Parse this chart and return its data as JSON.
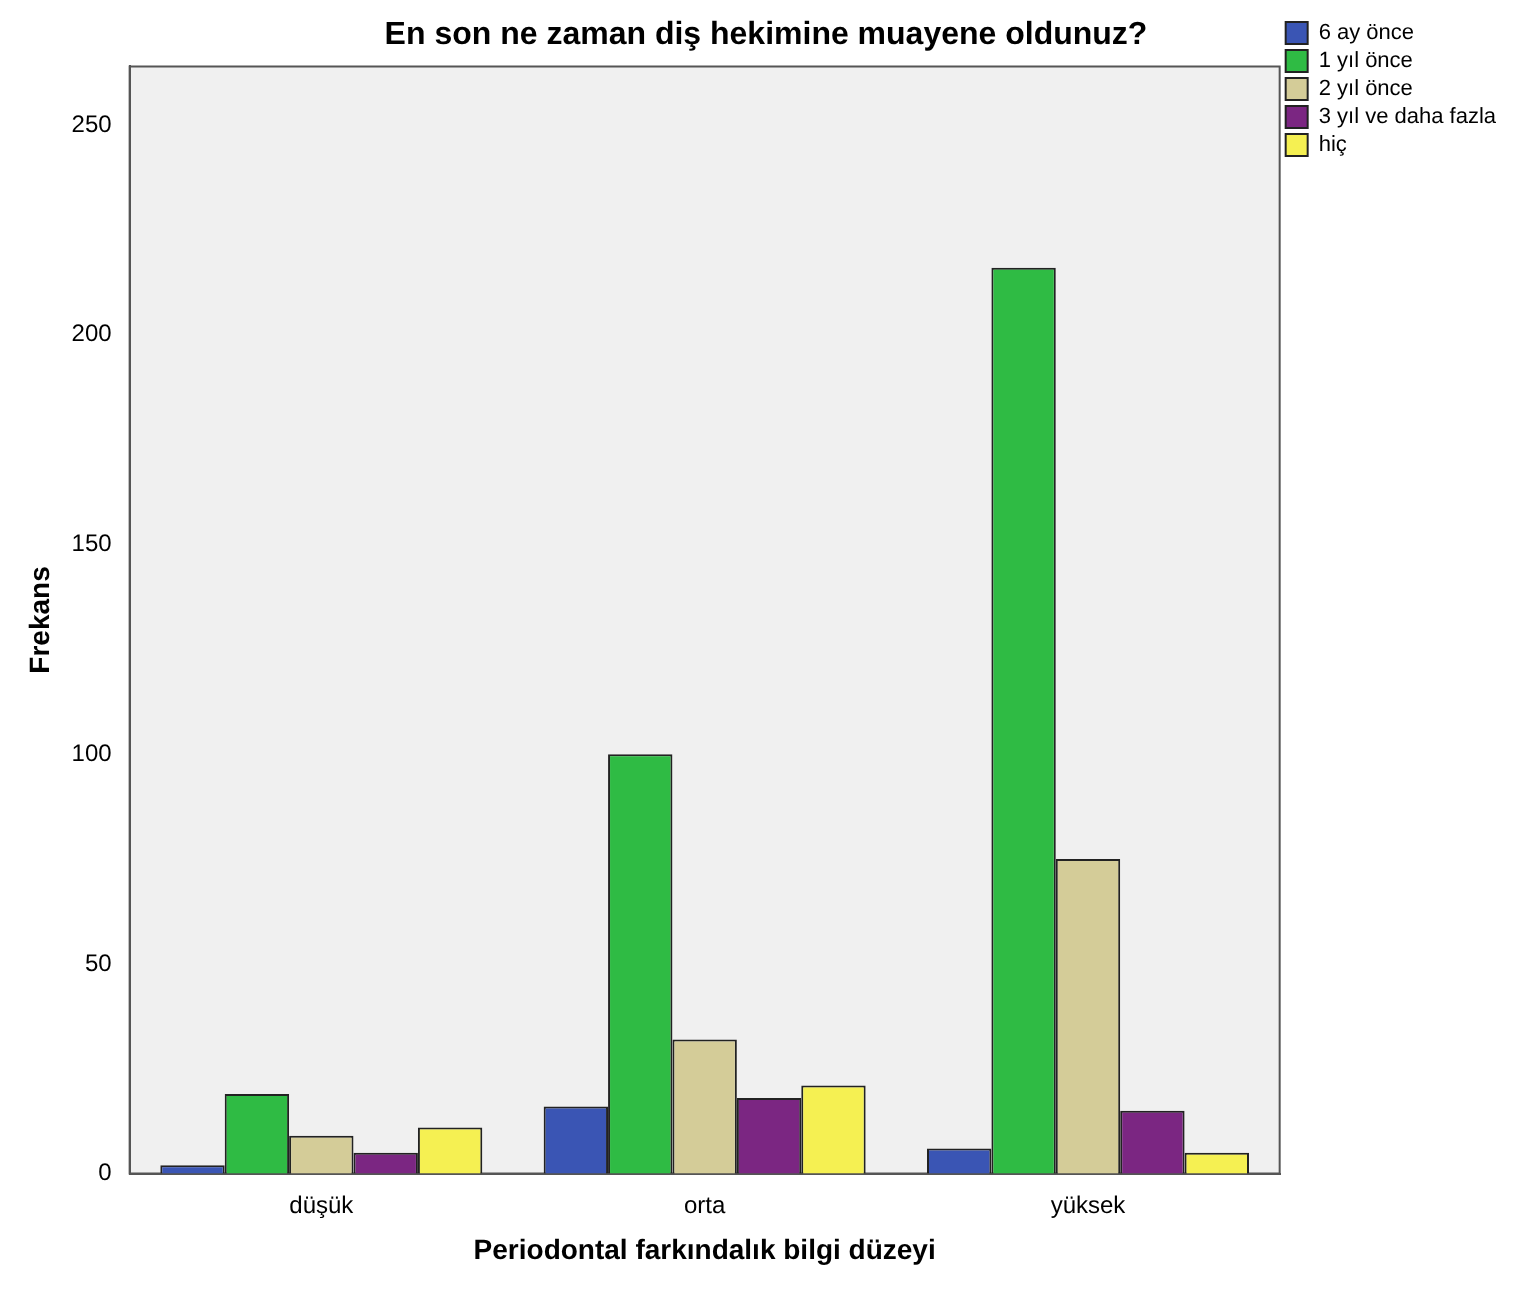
{
  "chart_data": {
    "type": "bar",
    "title": "En son ne zaman diş hekimine muayene oldunuz?",
    "xlabel": "Periodontal farkındalık bilgi düzeyi",
    "ylabel": "Frekans",
    "categories": [
      "düşük",
      "orta",
      "yüksek"
    ],
    "series": [
      {
        "name": "6 ay önce",
        "color": "#3a55b4",
        "values": [
          2,
          16,
          6
        ]
      },
      {
        "name": "1 yıl önce",
        "color": "#2fbb44",
        "values": [
          19,
          100,
          216
        ]
      },
      {
        "name": "2 yıl önce",
        "color": "#d4cc98",
        "values": [
          9,
          32,
          75
        ]
      },
      {
        "name": "3 yıl ve daha fazla",
        "color": "#7b2682",
        "values": [
          5,
          18,
          15
        ]
      },
      {
        "name": "hiç",
        "color": "#f5f052",
        "values": [
          11,
          21,
          5
        ]
      }
    ],
    "ylim": [
      0,
      264
    ],
    "yticks": [
      0,
      50,
      100,
      150,
      200,
      250
    ],
    "grid": false,
    "legend": "top right"
  }
}
